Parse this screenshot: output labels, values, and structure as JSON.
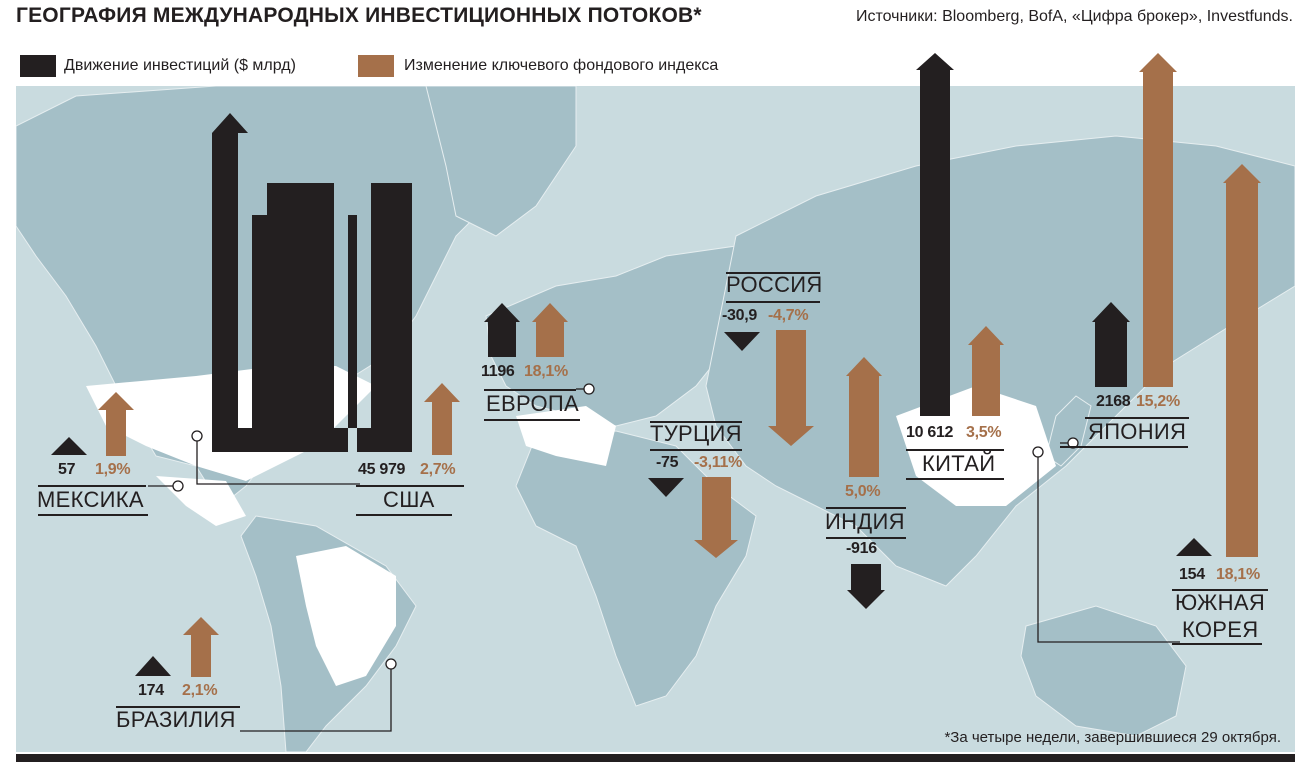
{
  "title": "ГЕОГРАФИЯ МЕЖДУНАРОДНЫХ ИНВЕСТИЦИОННЫХ ПОТОКОВ*",
  "source": "Источники: Bloomberg, BofA, «Цифра брокер», Investfunds.",
  "legend": {
    "investment": "Движение инвестиций  ($ млрд)",
    "index": "Изменение ключевого фондового индекса"
  },
  "colors": {
    "investment": "#231f20",
    "index": "#a5704a",
    "sea": "#c9dbdf",
    "land": "#a4bfc7"
  },
  "footnote": "*За четыре недели, завершившиеся 29 октября.",
  "chart_data": {
    "type": "bar",
    "categories": [
      "США",
      "Мексика",
      "Бразилия",
      "Европа",
      "Россия",
      "Турция",
      "Индия",
      "Китай",
      "Япония",
      "Южная Корея"
    ],
    "series": [
      {
        "name": "Движение инвестиций  ($ млрд)",
        "values": [
          45979,
          57,
          174,
          1196,
          -30.9,
          -75,
          -916,
          10612,
          2168,
          154
        ]
      },
      {
        "name": "Изменение ключевого фондового индекса",
        "values": [
          2.7,
          1.9,
          2.1,
          18.1,
          -4.7,
          -3.11,
          5.0,
          3.5,
          15.2,
          18.1
        ]
      }
    ]
  },
  "countries": {
    "usa": {
      "name": "США",
      "investment": "45 979",
      "index": "2,7%"
    },
    "mexico": {
      "name": "МЕКСИКА",
      "investment": "57",
      "index": "1,9%"
    },
    "brazil": {
      "name": "БРАЗИЛИЯ",
      "investment": "174",
      "index": "2,1%"
    },
    "europe": {
      "name": "ЕВРОПА",
      "investment": "1196",
      "index": "18,1%"
    },
    "russia": {
      "name": "РОССИЯ",
      "investment": "-30,9",
      "index": "-4,7%"
    },
    "turkey": {
      "name": "ТУРЦИЯ",
      "investment": "-75",
      "index": "-3,11%"
    },
    "india": {
      "name": "ИНДИЯ",
      "investment": "-916",
      "index": "5,0%"
    },
    "china": {
      "name": "КИТАЙ",
      "investment": "10 612",
      "index": "3,5%"
    },
    "japan": {
      "name": "ЯПОНИЯ",
      "investment": "2168",
      "index": "15,2%"
    },
    "korea": {
      "name_line1": "ЮЖНАЯ",
      "name_line2": "КОРЕЯ",
      "investment": "154",
      "index": "18,1%"
    }
  }
}
